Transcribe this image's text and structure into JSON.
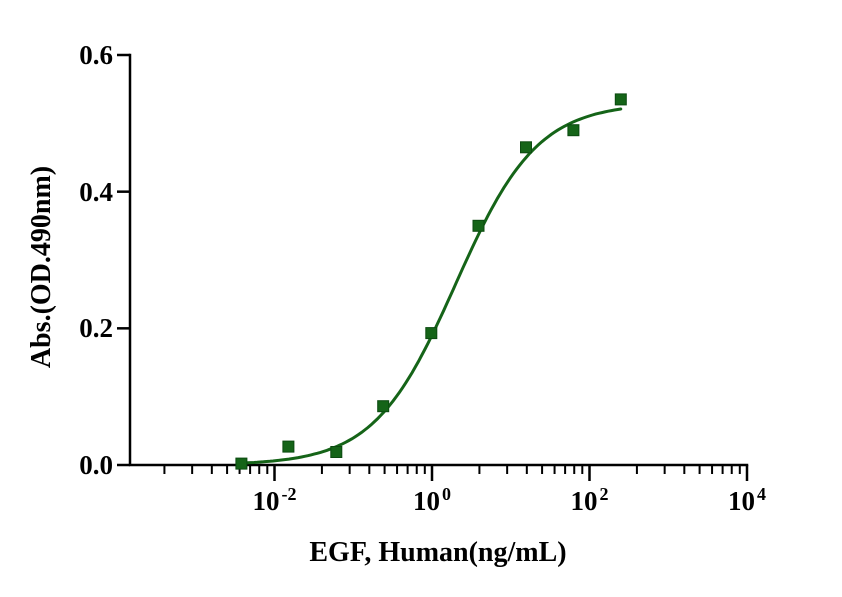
{
  "figure": {
    "background": "#ffffff"
  },
  "chart_data": {
    "type": "scatter",
    "subtype": "sigmoidal dose-response curve with 4PL fit on log10 x-axis",
    "title": "",
    "xlabel": "EGF, Human(ng/mL)",
    "ylabel": "Abs.(OD.490nm)",
    "x_scale": "log10",
    "x_log_range": [
      -3.835,
      4
    ],
    "ylim": [
      0,
      0.6
    ],
    "grid": false,
    "legend": "none",
    "axis_color": "#000000",
    "y_ticks": [
      {
        "value": 0.0,
        "label": "0.0"
      },
      {
        "value": 0.2,
        "label": "0.2"
      },
      {
        "value": 0.4,
        "label": "0.4"
      },
      {
        "value": 0.6,
        "label": "0.6"
      }
    ],
    "x_major_ticks": [
      {
        "exponent": -2,
        "base": "10",
        "exp_label": "-2"
      },
      {
        "exponent": 0,
        "base": "10",
        "exp_label": "0"
      },
      {
        "exponent": 2,
        "base": "10",
        "exp_label": "2"
      },
      {
        "exponent": 4,
        "base": "10",
        "exp_label": "4"
      }
    ],
    "series": [
      {
        "name": "EGF, Human",
        "marker": "square",
        "color": "#156418",
        "marker_edge_color": "#0b4a10",
        "x": [
          0.0038,
          0.015,
          0.061,
          0.24,
          0.98,
          3.9,
          15.6,
          62.5,
          250
        ],
        "y": [
          0.002,
          0.027,
          0.019,
          0.086,
          0.193,
          0.35,
          0.465,
          0.49,
          0.535
        ]
      }
    ],
    "fit_curve": {
      "model": "4PL",
      "bottom": 0,
      "top": 0.53,
      "ec50": 2,
      "hill": 0.84,
      "x_start": 0.0038,
      "x_end": 250,
      "color": "#156418"
    }
  }
}
